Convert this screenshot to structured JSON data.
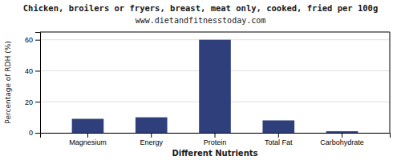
{
  "chart_data": {
    "type": "bar",
    "title": "Chicken, broilers or fryers, breast, meat only, cooked, fried per 100g",
    "subtitle": "www.dietandfitnesstoday.com",
    "xlabel": "Different Nutrients",
    "ylabel": "Percentage of RDH (%)",
    "categories": [
      "Magnesium",
      "Energy",
      "Protein",
      "Total Fat",
      "Carbohydrate"
    ],
    "values": [
      9,
      10,
      60,
      8,
      1
    ],
    "color": "#2e3f7c",
    "ylim": [
      0,
      65
    ],
    "yticks": [
      0,
      20,
      40,
      60
    ],
    "grid": true
  }
}
